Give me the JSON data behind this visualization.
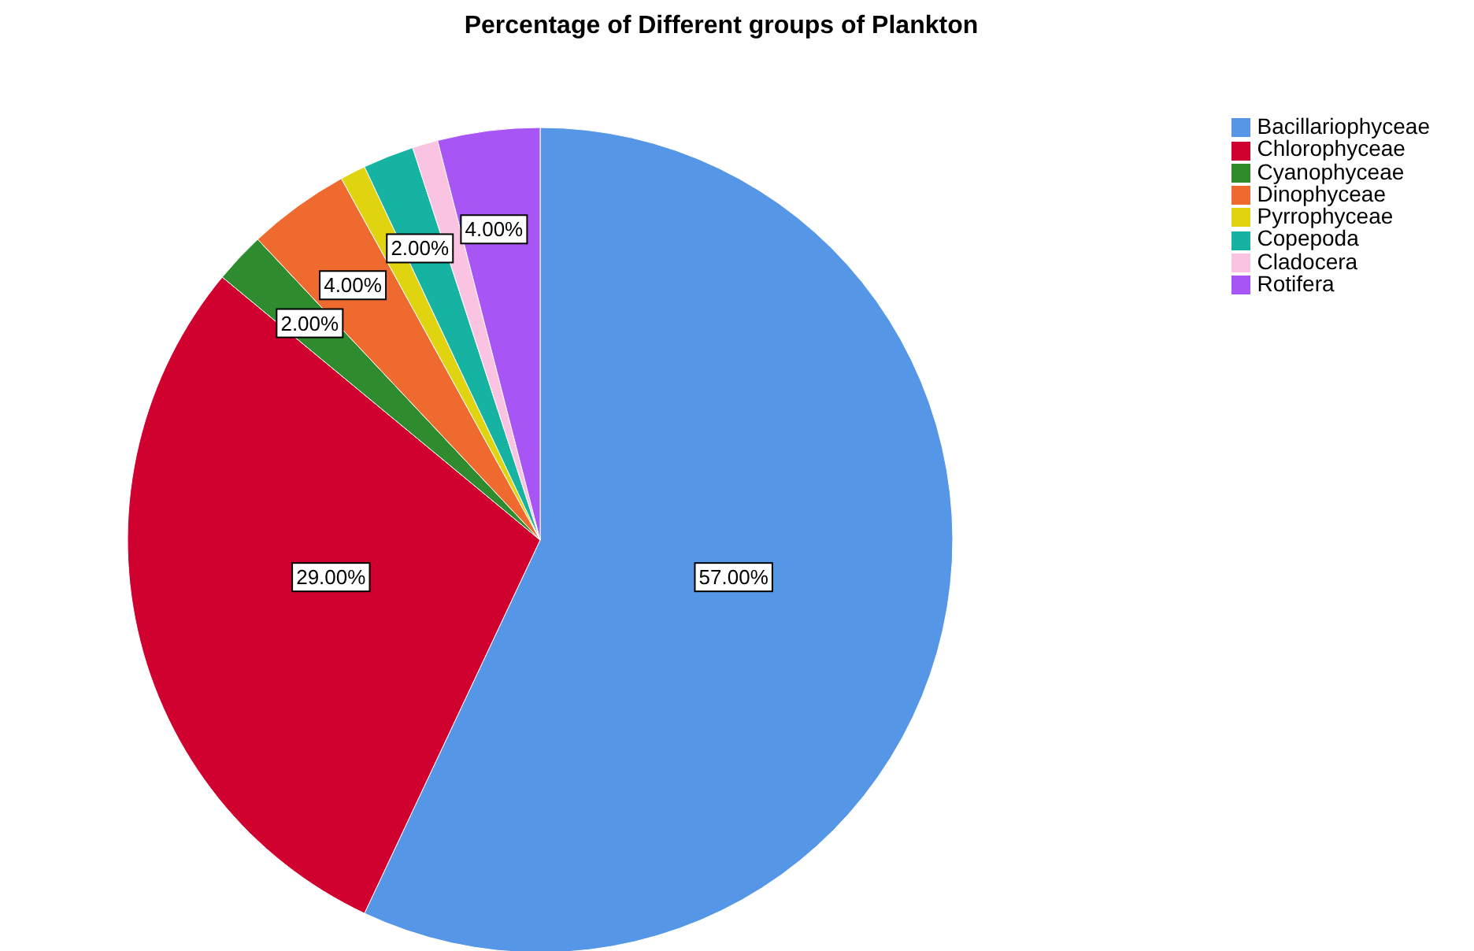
{
  "chart_data": {
    "type": "pie",
    "title": "Percentage of Different groups of Plankton",
    "categories": [
      "Bacillariophyceae",
      "Chlorophyceae",
      "Cyanophyceae",
      "Dinophyceae",
      "Pyrrophyceae",
      "Copepoda",
      "Cladocera",
      "Rotifera"
    ],
    "values": [
      57,
      29,
      2,
      4,
      1,
      2,
      1,
      4
    ],
    "colors": [
      "#5596e6",
      "#d0002f",
      "#2e8b2e",
      "#ef6a2f",
      "#e0d411",
      "#16b3a3",
      "#fac3e2",
      "#a855f5"
    ],
    "value_labels": [
      "57.00%",
      "29.00%",
      "2.00%",
      "4.00%",
      null,
      "2.00%",
      null,
      "4.00%"
    ],
    "legend": "top right"
  }
}
